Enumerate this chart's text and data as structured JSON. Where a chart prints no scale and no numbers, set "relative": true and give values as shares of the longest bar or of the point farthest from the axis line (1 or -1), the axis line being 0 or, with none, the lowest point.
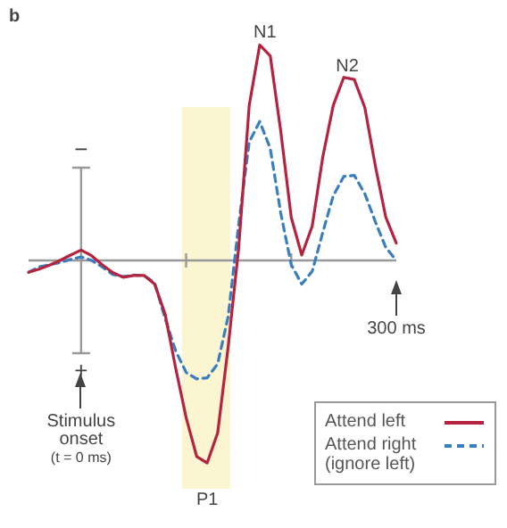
{
  "chart_data": {
    "type": "line",
    "relative": true,
    "annotations": [
      "b",
      "−",
      "+",
      "N1",
      "N2",
      "P1",
      "Stimulus\nonset\n(t = 0 ms)",
      "300 ms"
    ],
    "categories": [
      null,
      null,
      null,
      null,
      null,
      null,
      null,
      null,
      null,
      null,
      null,
      null,
      null,
      null,
      null,
      null,
      null,
      null,
      null,
      null,
      null,
      null,
      null,
      null,
      null,
      null,
      null,
      null,
      null,
      null,
      null,
      null,
      null,
      null,
      null,
      null
    ],
    "grid": false,
    "legend": "bottom right",
    "marker": "none",
    "series": [
      {
        "name": "Attend left",
        "color": "#b5243f",
        "line_style": "solid",
        "values": [
          -0.055,
          -0.04,
          -0.022,
          0,
          0.025,
          0.048,
          0.022,
          -0.02,
          -0.056,
          -0.078,
          -0.07,
          -0.07,
          -0.11,
          -0.25,
          -0.5,
          -0.73,
          -0.91,
          -0.94,
          -0.8,
          -0.4,
          0.06,
          0.72,
          1,
          0.95,
          0.6,
          0.2,
          0.025,
          0.16,
          0.48,
          0.72,
          0.85,
          0.84,
          0.71,
          0.44,
          0.2,
          0.08
        ]
      },
      {
        "name": "Attend right\n(ignore left)",
        "color": "#3a7ebf",
        "line_style": "dashed",
        "values": [
          -0.055,
          -0.03,
          -0.02,
          -0.01,
          0.005,
          0.016,
          0,
          -0.03,
          -0.065,
          -0.075,
          -0.068,
          -0.07,
          -0.104,
          -0.27,
          -0.42,
          -0.52,
          -0.55,
          -0.545,
          -0.48,
          -0.26,
          0.17,
          0.55,
          0.645,
          0.52,
          0.22,
          -0.02,
          -0.11,
          -0.05,
          0.13,
          0.3,
          0.39,
          0.395,
          0.31,
          0.18,
          0.06,
          0
        ]
      }
    ]
  }
}
